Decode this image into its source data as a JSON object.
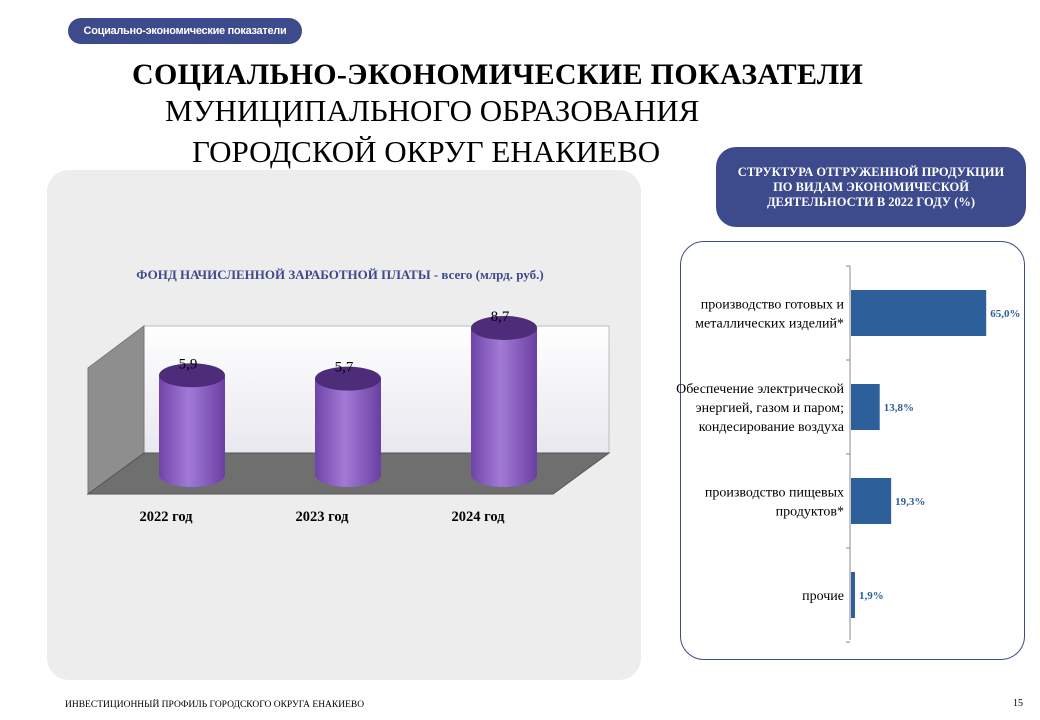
{
  "header": {
    "tag": "Социально-экономические показатели",
    "title_line1": "СОЦИАЛЬНО-ЭКОНОМИЧЕСКИЕ  ПОКАЗАТЕЛИ",
    "title_line2": "МУНИЦИПАЛЬНОГО  ОБРАЗОВАНИЯ",
    "title_line3": "ГОРОДСКОЙ  ОКРУГ  ЕНАКИЕВО"
  },
  "colors": {
    "accent": "#3d4a8c",
    "bar_purple": "#8a5ac2",
    "bar_blue": "#2d5f9a"
  },
  "chart_data": [
    {
      "type": "bar",
      "title": "ФОНД НАЧИСЛЕННОЙ ЗАРАБОТНОЙ ПЛАТЫ - всего (млрд. руб.)",
      "categories": [
        "2022 год",
        "2023 год",
        "2024 год"
      ],
      "values": [
        5.9,
        5.7,
        8.7
      ],
      "value_labels": [
        "5,9",
        "5,7",
        "8,7"
      ],
      "ylim": [
        0,
        10
      ],
      "grid": false,
      "style": "3d-cylinder"
    },
    {
      "type": "bar",
      "orientation": "horizontal",
      "title": "СТРУКТУРА ОТГРУЖЕННОЙ ПРОДУКЦИИ ПО ВИДАМ ЭКОНОМИЧЕСКОЙ ДЕЯТЕЛЬНОСТИ В 2022 ГОДУ (%)",
      "categories": [
        [
          "производство готовых и",
          "металлических изделий*"
        ],
        [
          "Обеспечение электрической",
          "энергией, газом и паром;",
          "кондесирование воздуха"
        ],
        [
          "производство пищевых",
          "продуктов*"
        ],
        [
          "прочие"
        ]
      ],
      "values": [
        65.0,
        13.8,
        19.3,
        1.9
      ],
      "value_labels": [
        "65,0%",
        "13,8%",
        "19,3%",
        "1,9%"
      ],
      "xlim": [
        0,
        100
      ],
      "grid": false
    }
  ],
  "footer": {
    "text": "ИНВЕСТИЦИОННЫЙ ПРОФИЛЬ ГОРОДСКОГО ОКРУГА ЕНАКИЕВО",
    "page": "15"
  }
}
